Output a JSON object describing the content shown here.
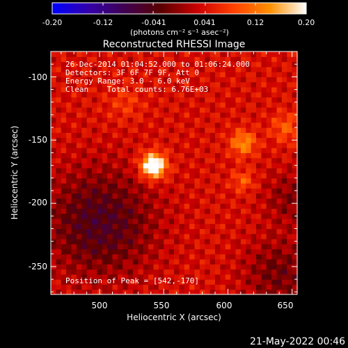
{
  "chart_data": {
    "type": "heatmap",
    "title": "Reconstructed RHESSI Image",
    "xlabel": "Heliocentric X (arcsec)",
    "ylabel": "Heliocentric Y (arcsec)",
    "xlim": [
      462,
      654
    ],
    "ylim": [
      -272,
      -80
    ],
    "x_ticks": [
      "500",
      "550",
      "600",
      "650"
    ],
    "x_tick_values": [
      500,
      550,
      600,
      650
    ],
    "y_ticks": [
      "-100",
      "-150",
      "-200",
      "-250"
    ],
    "y_tick_values": [
      -100,
      -150,
      -200,
      -250
    ],
    "colorbar": {
      "tick_labels": [
        "-0.20",
        "-0.12",
        "-0.041",
        "0.041",
        "0.12",
        "0.20"
      ],
      "tick_values": [
        -0.2,
        -0.12,
        -0.041,
        0.041,
        0.12,
        0.2
      ],
      "range": [
        -0.2,
        0.2
      ],
      "units": "(photons cm⁻² s⁻¹ asec⁻²)",
      "colormap": [
        "#0000ff",
        "#3300aa",
        "#400050",
        "#5a0000",
        "#cc0000",
        "#ff4000",
        "#ff9000",
        "#ffffff"
      ]
    },
    "annotations": [
      "26-Dec-2014 01:04:52.000 to 01:06:24.000",
      "Detectors: 3F 6F 7F 9F, Att 0",
      "Energy Range: 3.0 - 6.0 keV",
      "Clean    Total counts: 6.76E+03"
    ],
    "peak_label": "Position of Peak = [542,-170]",
    "peak": {
      "x": 542,
      "y": -170
    },
    "sources": [
      {
        "x": 542,
        "y": -170,
        "sigma": 7,
        "amp": 0.21
      },
      {
        "x": 612,
        "y": -152,
        "sigma": 7,
        "amp": 0.1
      },
      {
        "x": 612,
        "y": -182,
        "sigma": 6,
        "amp": 0.06
      },
      {
        "x": 645,
        "y": -140,
        "sigma": 8,
        "amp": 0.06
      },
      {
        "x": 520,
        "y": -120,
        "sigma": 10,
        "amp": 0.035
      }
    ],
    "negative_regions": [
      {
        "x": 500,
        "y": -215,
        "sigma": 30,
        "amp": -0.09
      },
      {
        "x": 640,
        "y": -255,
        "sigma": 20,
        "amp": -0.06
      },
      {
        "x": 650,
        "y": -195,
        "sigma": 15,
        "amp": -0.05
      }
    ],
    "background_level": 0.04,
    "ripple_amplitude": 0.035
  },
  "footer": {
    "date": "21-May-2022 00:46"
  }
}
